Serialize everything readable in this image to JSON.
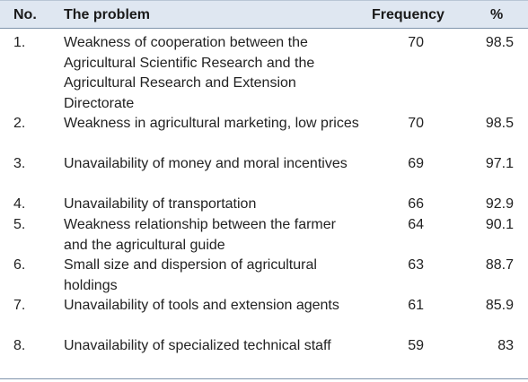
{
  "headers": {
    "no": "No.",
    "problem": "The problem",
    "frequency": "Frequency",
    "percent": "%"
  },
  "rows": [
    {
      "no": "1.",
      "problem": "Weakness of cooperation between the Agricultural Scientific Research and the Agricultural Research and Extension Directorate",
      "frequency": "70",
      "percent": "98.5"
    },
    {
      "no": "2.",
      "problem": "Weakness in agricultural marketing, low prices",
      "frequency": "70",
      "percent": "98.5"
    },
    {
      "no": "3.",
      "problem": "Unavailability of money and moral incentives",
      "frequency": "69",
      "percent": "97.1"
    },
    {
      "no": "4.",
      "problem": "Unavailability of transportation",
      "frequency": "66",
      "percent": "92.9"
    },
    {
      "no": "5.",
      "problem": "Weakness relationship between the farmer and the agricultural guide",
      "frequency": "64",
      "percent": "90.1"
    },
    {
      "no": "6.",
      "problem": "Small size and dispersion of agricultural holdings",
      "frequency": "63",
      "percent": "88.7"
    },
    {
      "no": "7.",
      "problem": "Unavailability of tools and extension agents",
      "frequency": "61",
      "percent": "85.9"
    },
    {
      "no": "8.",
      "problem": "Unavailability of specialized technical staff",
      "frequency": "59",
      "percent": "83"
    }
  ]
}
